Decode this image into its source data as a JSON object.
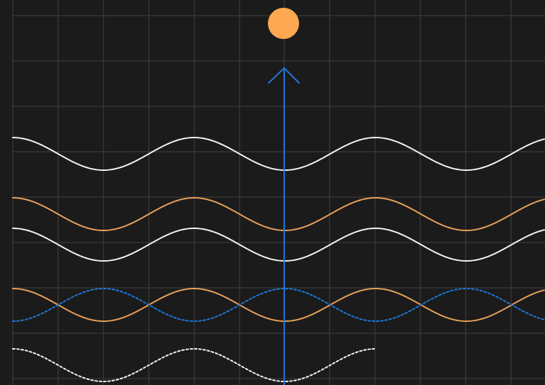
{
  "colors": {
    "background": "#1b1b1b",
    "grid": "#3a3a3a",
    "white": "#f2f2f2",
    "orange": "#e6a05a",
    "blue": "#1e77d6",
    "sun": "#ffa852"
  },
  "waves": [
    {
      "name": "white-wave-top",
      "color": "white",
      "style": "solid",
      "phase": "crest-left"
    },
    {
      "name": "orange-wave-upper",
      "color": "orange",
      "style": "solid",
      "phase": "crest-left"
    },
    {
      "name": "white-wave-middle",
      "color": "white",
      "style": "solid",
      "phase": "crest-left"
    },
    {
      "name": "orange-wave-lower",
      "color": "orange",
      "style": "solid",
      "phase": "crest-left"
    },
    {
      "name": "blue-dashed-wave",
      "color": "blue",
      "style": "dashed",
      "phase": "trough-left"
    },
    {
      "name": "white-dashed-wave-partial",
      "color": "white",
      "style": "dashed",
      "phase": "crest-left"
    }
  ],
  "icons": {
    "sun": "sun-icon",
    "arrow": "arrow-up-icon"
  }
}
